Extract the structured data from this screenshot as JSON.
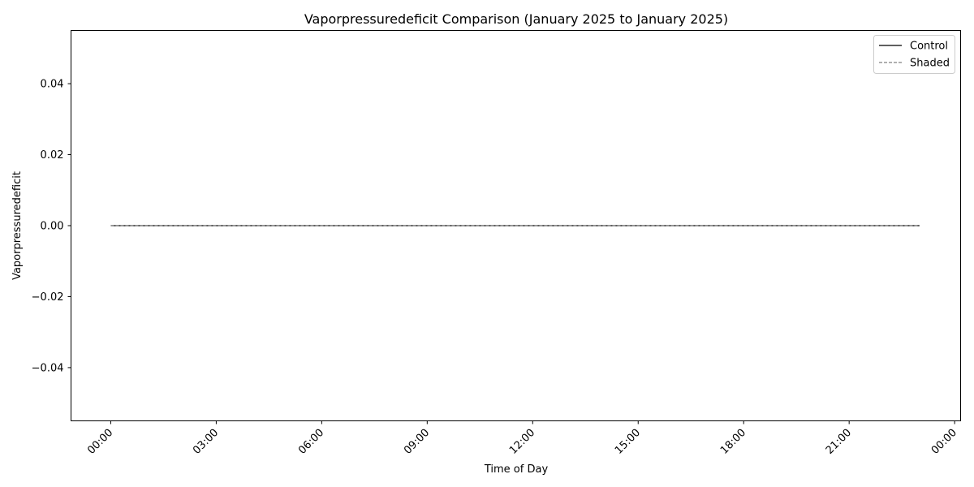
{
  "chart_data": {
    "type": "line",
    "title": "Vaporpressuredeficit Comparison (January 2025 to January 2025)",
    "xlabel": "Time of Day",
    "ylabel": "Vaporpressuredeficit",
    "x_ticks": [
      "00:00",
      "03:00",
      "06:00",
      "09:00",
      "12:00",
      "15:00",
      "18:00",
      "21:00",
      "00:00"
    ],
    "x_tick_hours": [
      0,
      3,
      6,
      9,
      12,
      15,
      18,
      21,
      24
    ],
    "xlim_hours": [
      -1.13,
      24.17
    ],
    "ylim": [
      -0.055,
      0.055
    ],
    "y_ticks": [
      0.04,
      0.02,
      0.0,
      -0.02,
      -0.04
    ],
    "y_tick_labels": [
      "0.04",
      "0.02",
      "0.00",
      "−0.02",
      "−0.04"
    ],
    "grid": false,
    "legend_position": "top-right",
    "series": [
      {
        "name": "Control",
        "color": "#000000",
        "style": "solid",
        "x_hours": [
          0,
          1,
          2,
          3,
          4,
          5,
          6,
          7,
          8,
          9,
          10,
          11,
          12,
          13,
          14,
          15,
          16,
          17,
          18,
          19,
          20,
          21,
          22,
          23
        ],
        "values": [
          0,
          0,
          0,
          0,
          0,
          0,
          0,
          0,
          0,
          0,
          0,
          0,
          0,
          0,
          0,
          0,
          0,
          0,
          0,
          0,
          0,
          0,
          0,
          0
        ]
      },
      {
        "name": "Shaded",
        "color": "#808080",
        "style": "dashed",
        "x_hours": [
          0,
          1,
          2,
          3,
          4,
          5,
          6,
          7,
          8,
          9,
          10,
          11,
          12,
          13,
          14,
          15,
          16,
          17,
          18,
          19,
          20,
          21,
          22,
          23
        ],
        "values": [
          0,
          0,
          0,
          0,
          0,
          0,
          0,
          0,
          0,
          0,
          0,
          0,
          0,
          0,
          0,
          0,
          0,
          0,
          0,
          0,
          0,
          0,
          0,
          0
        ]
      }
    ]
  }
}
